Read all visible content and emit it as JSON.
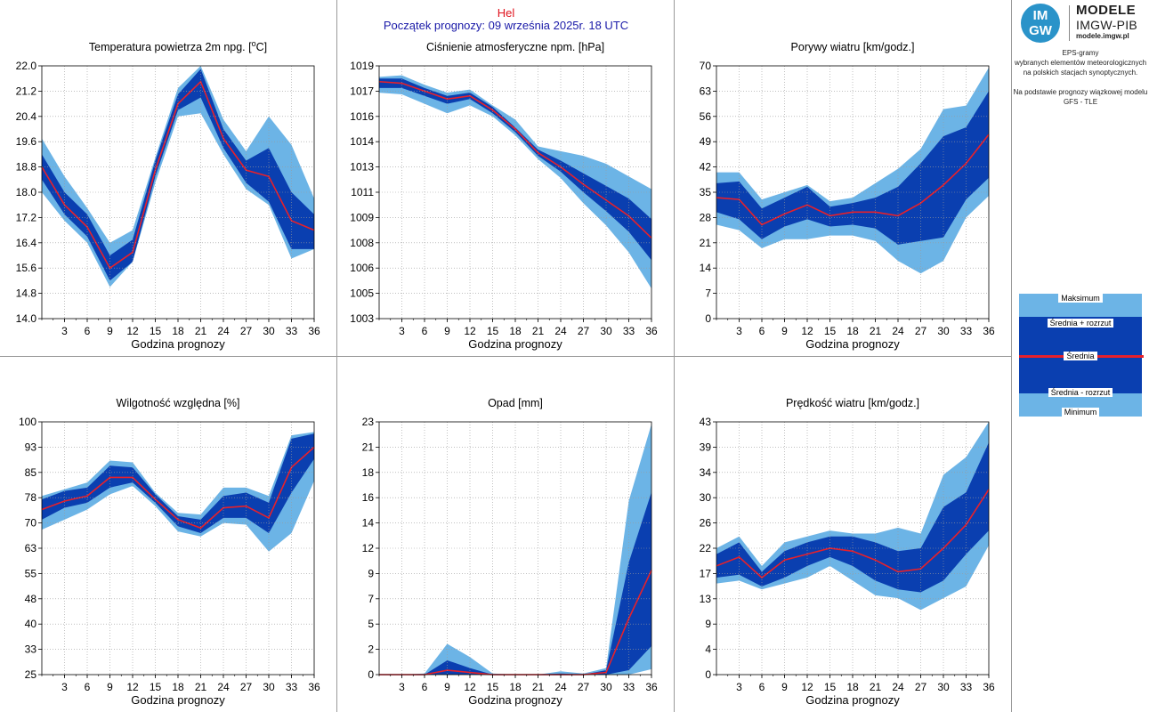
{
  "header": {
    "station": "Hel",
    "forecast_start": "Początek prognozy: 09 września 2025r. 18 UTC"
  },
  "logo": {
    "mark_top": "IM",
    "mark_bottom": "GW",
    "title": "MODELE",
    "subtitle": "IMGW-PIB",
    "site": "modele.imgw.pl"
  },
  "info": {
    "line1": "EPS-gramy",
    "line2": "wybranych elementów meteorologicznych",
    "line3": "na polskich stacjach  synoptycznych.",
    "line4": "Na podstawie prognozy wiązkowej modelu",
    "line5": "GFS - TLE"
  },
  "legend": {
    "max": "Maksimum",
    "mean_plus": "Średnia + rozrzut",
    "mean": "Średnia",
    "mean_minus": "Średnia - rozrzut",
    "min": "Minimum"
  },
  "colors": {
    "outer_band": "#6cb4e6",
    "inner_band": "#0a3fb0",
    "mean_line": "#e8202a"
  },
  "chart_data": [
    {
      "type": "area",
      "title_html": "Temperatura powietrza 2m npg. [°C]",
      "title_pre": "Temperatura powietrza 2m npg. [",
      "title_sup": "o",
      "title_post": "C]",
      "xlabel": "Godzina prognozy",
      "x": [
        0,
        3,
        6,
        9,
        12,
        15,
        18,
        21,
        24,
        27,
        30,
        33,
        36
      ],
      "xticks": [
        3,
        6,
        9,
        12,
        15,
        18,
        21,
        24,
        27,
        30,
        33,
        36
      ],
      "ylim": [
        14.0,
        22.0
      ],
      "yticks": [
        "14.0",
        "14.8",
        "15.6",
        "16.4",
        "17.2",
        "18.0",
        "18.8",
        "19.6",
        "20.4",
        "21.2",
        "22.0"
      ],
      "max": [
        19.7,
        18.5,
        17.5,
        16.4,
        16.8,
        19.1,
        21.3,
        22.0,
        20.3,
        19.3,
        20.4,
        19.5,
        17.8
      ],
      "mean_plus": [
        19.2,
        18.0,
        17.3,
        16.0,
        16.5,
        19.0,
        21.1,
        21.9,
        20.0,
        19.0,
        19.4,
        18.0,
        17.3
      ],
      "mean": [
        18.8,
        17.6,
        16.9,
        15.6,
        16.1,
        18.7,
        20.8,
        21.5,
        19.7,
        18.7,
        18.5,
        17.1,
        16.8
      ],
      "mean_minus": [
        18.4,
        17.3,
        16.6,
        15.2,
        15.8,
        18.5,
        20.6,
        21.0,
        19.4,
        18.3,
        17.7,
        16.2,
        16.2
      ],
      "min": [
        18.0,
        17.1,
        16.4,
        15.0,
        15.8,
        18.3,
        20.4,
        20.5,
        19.2,
        18.1,
        17.6,
        15.9,
        16.2
      ]
    },
    {
      "type": "area",
      "title_pre": "Ciśnienie atmosferyczne npm. [hPa]",
      "title_sup": "",
      "title_post": "",
      "xlabel": "Godzina prognozy",
      "x": [
        0,
        3,
        6,
        9,
        12,
        15,
        18,
        21,
        24,
        27,
        30,
        33,
        36
      ],
      "xticks": [
        3,
        6,
        9,
        12,
        15,
        18,
        21,
        24,
        27,
        30,
        33,
        36
      ],
      "ylim": [
        1003.0,
        1019.0
      ],
      "yticks": [
        "1003",
        "1005",
        "1006",
        "1008",
        "1009",
        "1011",
        "1013",
        "1014",
        "1016",
        "1017",
        "1019"
      ],
      "max": [
        1018.3,
        1018.4,
        1017.8,
        1017.3,
        1017.5,
        1016.5,
        1015.6,
        1013.9,
        1013.6,
        1013.3,
        1012.8,
        1012.0,
        1011.2
      ],
      "mean_plus": [
        1018.2,
        1018.2,
        1017.6,
        1017.1,
        1017.3,
        1016.4,
        1015.1,
        1013.7,
        1013.0,
        1012.2,
        1011.4,
        1010.6,
        1009.3
      ],
      "mean": [
        1018.0,
        1017.9,
        1017.4,
        1016.9,
        1017.1,
        1016.2,
        1015.0,
        1013.5,
        1012.6,
        1011.5,
        1010.5,
        1009.5,
        1008.1
      ],
      "mean_minus": [
        1017.6,
        1017.6,
        1017.1,
        1016.6,
        1016.9,
        1016.0,
        1014.8,
        1013.3,
        1012.3,
        1011.0,
        1009.8,
        1008.5,
        1006.7
      ],
      "min": [
        1017.3,
        1017.2,
        1016.6,
        1016.0,
        1016.5,
        1015.8,
        1014.6,
        1013.1,
        1011.9,
        1010.3,
        1008.9,
        1007.2,
        1004.9
      ]
    },
    {
      "type": "area",
      "title_pre": "Porywy wiatru [km/godz.]",
      "title_sup": "",
      "title_post": "",
      "xlabel": "Godzina prognozy",
      "x": [
        0,
        3,
        6,
        9,
        12,
        15,
        18,
        21,
        24,
        27,
        30,
        33,
        36
      ],
      "xticks": [
        3,
        6,
        9,
        12,
        15,
        18,
        21,
        24,
        27,
        30,
        33,
        36
      ],
      "ylim": [
        0,
        70
      ],
      "yticks": [
        "0",
        "7",
        "14",
        "21",
        "28",
        "35",
        "42",
        "49",
        "56",
        "63",
        "70"
      ],
      "max": [
        40.5,
        40.5,
        33.0,
        35.0,
        37.0,
        32.5,
        33.5,
        37.5,
        41.5,
        47.0,
        58.0,
        59.0,
        69.5
      ],
      "mean_plus": [
        37.5,
        38.0,
        30.5,
        33.5,
        36.5,
        31.0,
        32.0,
        33.5,
        36.5,
        43.0,
        50.5,
        53.0,
        63.0
      ],
      "mean": [
        33.5,
        33.0,
        26.0,
        29.0,
        31.5,
        28.5,
        29.5,
        29.5,
        28.5,
        32.0,
        37.0,
        43.0,
        51.0
      ],
      "mean_minus": [
        29.5,
        27.5,
        22.0,
        25.5,
        27.5,
        25.5,
        26.0,
        25.0,
        20.5,
        21.5,
        22.5,
        33.0,
        39.0
      ],
      "min": [
        26.0,
        24.5,
        19.5,
        22.0,
        22.0,
        23.0,
        23.0,
        21.5,
        16.0,
        12.5,
        16.0,
        28.0,
        34.0
      ]
    },
    {
      "type": "area",
      "title_pre": "Wilgotność względna [%]",
      "title_sup": "",
      "title_post": "",
      "xlabel": "Godzina prognozy",
      "x": [
        0,
        3,
        6,
        9,
        12,
        15,
        18,
        21,
        24,
        27,
        30,
        33,
        36
      ],
      "xticks": [
        3,
        6,
        9,
        12,
        15,
        18,
        21,
        24,
        27,
        30,
        33,
        36
      ],
      "ylim": [
        25,
        100
      ],
      "yticks": [
        "25",
        "33",
        "40",
        "48",
        "55",
        "63",
        "70",
        "78",
        "85",
        "93",
        "100"
      ],
      "max": [
        78.0,
        80.0,
        82.0,
        88.5,
        88.0,
        79.0,
        73.0,
        72.5,
        80.5,
        80.5,
        78.0,
        96.0,
        97.0
      ],
      "mean_plus": [
        77.0,
        79.5,
        80.5,
        87.0,
        86.5,
        78.5,
        72.0,
        71.0,
        78.0,
        79.0,
        76.0,
        95.0,
        96.5
      ],
      "mean": [
        74.0,
        76.5,
        78.0,
        83.5,
        83.5,
        77.0,
        71.0,
        68.5,
        74.5,
        75.0,
        71.5,
        86.5,
        92.5
      ],
      "mean_minus": [
        71.0,
        74.5,
        76.0,
        80.5,
        82.0,
        76.0,
        69.0,
        67.0,
        71.5,
        71.5,
        67.0,
        79.0,
        89.0
      ],
      "min": [
        68.0,
        71.0,
        74.0,
        78.5,
        81.0,
        75.0,
        67.5,
        66.0,
        70.0,
        69.5,
        61.5,
        67.0,
        82.5
      ]
    },
    {
      "type": "area",
      "title_pre": "Opad [mm]",
      "title_sup": "",
      "title_post": "",
      "xlabel": "Godzina prognozy",
      "x": [
        0,
        3,
        6,
        9,
        12,
        15,
        18,
        21,
        24,
        27,
        30,
        33,
        36
      ],
      "xticks": [
        3,
        6,
        9,
        12,
        15,
        18,
        21,
        24,
        27,
        30,
        33,
        36
      ],
      "ylim": [
        0,
        23
      ],
      "yticks": [
        "0",
        "2",
        "5",
        "7",
        "9",
        "12",
        "14",
        "16",
        "18",
        "21",
        "23"
      ],
      "max": [
        0.0,
        0.0,
        0.1,
        2.8,
        1.6,
        0.1,
        0.0,
        0.0,
        0.3,
        0.1,
        0.6,
        15.8,
        22.8
      ],
      "mean_plus": [
        0.0,
        0.0,
        0.0,
        1.3,
        0.6,
        0.0,
        0.0,
        0.0,
        0.1,
        0.0,
        0.4,
        10.2,
        16.6
      ],
      "mean": [
        0.0,
        0.0,
        0.0,
        0.4,
        0.2,
        0.0,
        0.0,
        0.0,
        0.0,
        0.0,
        0.2,
        5.1,
        9.5
      ],
      "mean_minus": [
        0.0,
        0.0,
        0.0,
        0.0,
        0.0,
        0.0,
        0.0,
        0.0,
        0.0,
        0.0,
        0.0,
        0.4,
        2.6
      ],
      "min": [
        0.0,
        0.0,
        0.0,
        0.0,
        0.0,
        0.0,
        0.0,
        0.0,
        0.0,
        0.0,
        0.0,
        0.0,
        0.5
      ]
    },
    {
      "type": "area",
      "title_pre": "Prędkość wiatru [km/godz.]",
      "title_sup": "",
      "title_post": "",
      "xlabel": "Godzina prognozy",
      "x": [
        0,
        3,
        6,
        9,
        12,
        15,
        18,
        21,
        24,
        27,
        30,
        33,
        36
      ],
      "xticks": [
        3,
        6,
        9,
        12,
        15,
        18,
        21,
        24,
        27,
        30,
        33,
        36
      ],
      "ylim": [
        0,
        43
      ],
      "yticks": [
        "0",
        "4",
        "9",
        "13",
        "17",
        "22",
        "26",
        "30",
        "34",
        "39",
        "43"
      ],
      "max": [
        21.5,
        23.5,
        18.5,
        22.5,
        23.5,
        24.5,
        24.0,
        24.0,
        25.0,
        24.0,
        34.0,
        37.0,
        43.0
      ],
      "mean_plus": [
        20.5,
        22.5,
        17.5,
        21.0,
        22.5,
        23.5,
        23.5,
        22.5,
        21.0,
        21.5,
        28.5,
        31.0,
        39.5
      ],
      "mean": [
        18.5,
        20.0,
        16.5,
        19.5,
        20.5,
        21.5,
        21.0,
        19.5,
        17.5,
        18.0,
        21.5,
        25.5,
        31.5
      ],
      "mean_minus": [
        16.5,
        17.0,
        15.0,
        16.5,
        18.5,
        20.0,
        18.5,
        16.0,
        14.5,
        14.0,
        16.0,
        20.5,
        24.5
      ],
      "min": [
        15.5,
        16.0,
        14.5,
        15.5,
        16.5,
        18.5,
        16.0,
        13.5,
        13.0,
        11.0,
        13.0,
        15.0,
        22.0
      ]
    }
  ]
}
